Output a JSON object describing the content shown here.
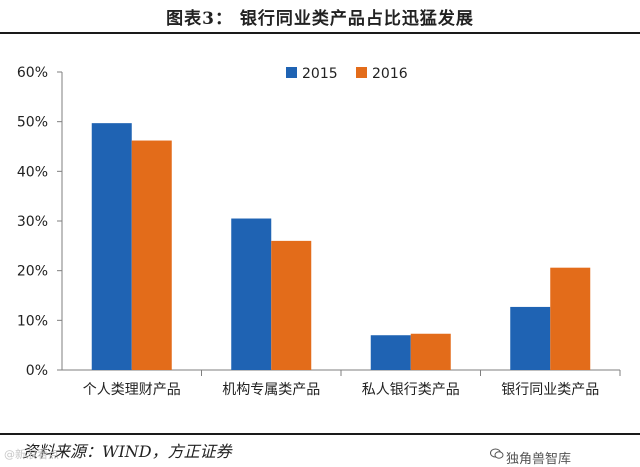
{
  "header": {
    "title": "图表3：   银行同业类产品占比迅猛发展"
  },
  "footer": {
    "source": "资料来源：WIND，方正证券",
    "watermark_left": "@新浪看点",
    "watermark_right": "独角兽智库"
  },
  "colors": {
    "series_2015": "#1f63b3",
    "series_2016": "#e36c1a"
  },
  "chart_data": {
    "type": "bar",
    "categories": [
      "个人类理财产品",
      "机构专属类产品",
      "私人银行类产品",
      "银行同业类产品"
    ],
    "series": [
      {
        "name": "2015",
        "values": [
          49.7,
          30.5,
          7.0,
          12.7
        ]
      },
      {
        "name": "2016",
        "values": [
          46.2,
          26.0,
          7.3,
          20.6
        ]
      }
    ],
    "ylim": [
      0,
      60
    ],
    "yticks": [
      "0%",
      "10%",
      "20%",
      "30%",
      "40%",
      "50%",
      "60%"
    ],
    "grid": false,
    "legend_position": "top-center"
  }
}
